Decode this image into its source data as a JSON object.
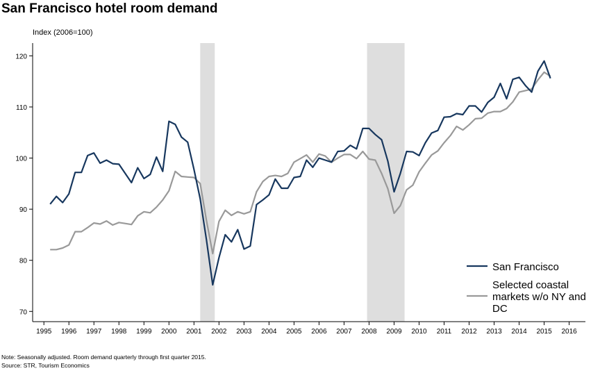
{
  "title": "San Francisco hotel room demand",
  "notes": {
    "note": "Note: Seasonally adjusted. Room demand quarterly through first quarter 2015.",
    "source": "Source: STR, Tourism Economics"
  },
  "colors": {
    "sf": "#17375e",
    "coastal": "#999999",
    "recession": "#dedede",
    "axis": "#000000"
  },
  "chart_data": {
    "type": "line",
    "title": "San Francisco hotel room demand",
    "ylabel": "Index (2006=100)",
    "xlabel": "",
    "xlim": [
      1994.55,
      2016.65
    ],
    "ylim": [
      68,
      122.5
    ],
    "x_ticks": [
      1995,
      1996,
      1997,
      1998,
      1999,
      2000,
      2001,
      2002,
      2003,
      2004,
      2005,
      2006,
      2007,
      2008,
      2009,
      2010,
      2011,
      2012,
      2013,
      2014,
      2015,
      2016
    ],
    "y_ticks": [
      70,
      80,
      90,
      100,
      110,
      120
    ],
    "grid": false,
    "legend_position": "bottom-right",
    "recession_bands": [
      [
        2001.25,
        2001.83
      ],
      [
        2007.92,
        2009.42
      ]
    ],
    "series": [
      {
        "name": "San Francisco",
        "values": [
          [
            1995.25,
            91.0
          ],
          [
            1995.5,
            92.5
          ],
          [
            1995.75,
            91.3
          ],
          [
            1996.0,
            93.0
          ],
          [
            1996.25,
            97.2
          ],
          [
            1996.5,
            97.2
          ],
          [
            1996.75,
            100.5
          ],
          [
            1997.0,
            101.0
          ],
          [
            1997.25,
            99.0
          ],
          [
            1997.5,
            99.6
          ],
          [
            1997.75,
            98.9
          ],
          [
            1998.0,
            98.8
          ],
          [
            1998.25,
            97.0
          ],
          [
            1998.5,
            95.2
          ],
          [
            1998.75,
            98.1
          ],
          [
            1999.0,
            96.0
          ],
          [
            1999.25,
            96.8
          ],
          [
            1999.5,
            100.2
          ],
          [
            1999.75,
            97.4
          ],
          [
            2000.0,
            107.2
          ],
          [
            2000.25,
            106.6
          ],
          [
            2000.5,
            104.1
          ],
          [
            2000.75,
            103.1
          ],
          [
            2001.0,
            97.8
          ],
          [
            2001.25,
            92.0
          ],
          [
            2001.5,
            84.0
          ],
          [
            2001.75,
            75.2
          ],
          [
            2002.0,
            80.5
          ],
          [
            2002.25,
            85.0
          ],
          [
            2002.5,
            83.6
          ],
          [
            2002.75,
            86.0
          ],
          [
            2003.0,
            82.2
          ],
          [
            2003.25,
            82.8
          ],
          [
            2003.5,
            90.9
          ],
          [
            2003.75,
            91.8
          ],
          [
            2004.0,
            92.8
          ],
          [
            2004.25,
            95.9
          ],
          [
            2004.5,
            94.1
          ],
          [
            2004.75,
            94.1
          ],
          [
            2005.0,
            96.2
          ],
          [
            2005.25,
            96.4
          ],
          [
            2005.5,
            99.6
          ],
          [
            2005.75,
            98.2
          ],
          [
            2006.0,
            100.0
          ],
          [
            2006.25,
            99.6
          ],
          [
            2006.5,
            99.2
          ],
          [
            2006.75,
            101.3
          ],
          [
            2007.0,
            101.4
          ],
          [
            2007.25,
            102.5
          ],
          [
            2007.5,
            101.8
          ],
          [
            2007.75,
            105.8
          ],
          [
            2008.0,
            105.8
          ],
          [
            2008.25,
            104.6
          ],
          [
            2008.5,
            103.6
          ],
          [
            2008.75,
            99.4
          ],
          [
            2009.0,
            93.4
          ],
          [
            2009.25,
            97.0
          ],
          [
            2009.5,
            101.3
          ],
          [
            2009.75,
            101.2
          ],
          [
            2010.0,
            100.5
          ],
          [
            2010.25,
            103.0
          ],
          [
            2010.5,
            104.9
          ],
          [
            2010.75,
            105.4
          ],
          [
            2011.0,
            108.0
          ],
          [
            2011.25,
            108.1
          ],
          [
            2011.5,
            108.7
          ],
          [
            2011.75,
            108.5
          ],
          [
            2012.0,
            110.2
          ],
          [
            2012.25,
            110.2
          ],
          [
            2012.5,
            109.0
          ],
          [
            2012.75,
            110.9
          ],
          [
            2013.0,
            111.9
          ],
          [
            2013.25,
            114.6
          ],
          [
            2013.5,
            111.6
          ],
          [
            2013.75,
            115.4
          ],
          [
            2014.0,
            115.8
          ],
          [
            2014.25,
            114.2
          ],
          [
            2014.5,
            112.9
          ],
          [
            2014.75,
            117.0
          ],
          [
            2015.0,
            119.0
          ],
          [
            2015.25,
            115.6
          ]
        ]
      },
      {
        "name": "Selected coastal markets w/o NY and DC",
        "values": [
          [
            1995.25,
            82.1
          ],
          [
            1995.5,
            82.1
          ],
          [
            1995.75,
            82.4
          ],
          [
            1996.0,
            83.0
          ],
          [
            1996.25,
            85.6
          ],
          [
            1996.5,
            85.6
          ],
          [
            1996.75,
            86.4
          ],
          [
            1997.0,
            87.3
          ],
          [
            1997.25,
            87.1
          ],
          [
            1997.5,
            87.7
          ],
          [
            1997.75,
            86.9
          ],
          [
            1998.0,
            87.4
          ],
          [
            1998.25,
            87.2
          ],
          [
            1998.5,
            87.0
          ],
          [
            1998.75,
            88.7
          ],
          [
            1999.0,
            89.5
          ],
          [
            1999.25,
            89.3
          ],
          [
            1999.5,
            90.4
          ],
          [
            1999.75,
            91.8
          ],
          [
            2000.0,
            93.6
          ],
          [
            2000.25,
            97.4
          ],
          [
            2000.5,
            96.4
          ],
          [
            2000.75,
            96.3
          ],
          [
            2001.0,
            96.2
          ],
          [
            2001.25,
            95.0
          ],
          [
            2001.5,
            87.8
          ],
          [
            2001.75,
            81.3
          ],
          [
            2002.0,
            87.6
          ],
          [
            2002.25,
            89.8
          ],
          [
            2002.5,
            88.8
          ],
          [
            2002.75,
            89.5
          ],
          [
            2003.0,
            89.1
          ],
          [
            2003.25,
            89.5
          ],
          [
            2003.5,
            93.4
          ],
          [
            2003.75,
            95.4
          ],
          [
            2004.0,
            96.4
          ],
          [
            2004.25,
            96.6
          ],
          [
            2004.5,
            96.4
          ],
          [
            2004.75,
            97.0
          ],
          [
            2005.0,
            99.2
          ],
          [
            2005.25,
            99.9
          ],
          [
            2005.5,
            100.6
          ],
          [
            2005.75,
            99.2
          ],
          [
            2006.0,
            100.8
          ],
          [
            2006.25,
            100.4
          ],
          [
            2006.5,
            99.2
          ],
          [
            2006.75,
            100.0
          ],
          [
            2007.0,
            100.7
          ],
          [
            2007.25,
            100.7
          ],
          [
            2007.5,
            99.9
          ],
          [
            2007.75,
            101.3
          ],
          [
            2008.0,
            99.8
          ],
          [
            2008.25,
            99.6
          ],
          [
            2008.5,
            97.0
          ],
          [
            2008.75,
            94.0
          ],
          [
            2009.0,
            89.2
          ],
          [
            2009.25,
            90.7
          ],
          [
            2009.5,
            93.8
          ],
          [
            2009.75,
            94.7
          ],
          [
            2010.0,
            97.3
          ],
          [
            2010.25,
            99.0
          ],
          [
            2010.5,
            100.6
          ],
          [
            2010.75,
            101.4
          ],
          [
            2011.0,
            103.0
          ],
          [
            2011.25,
            104.4
          ],
          [
            2011.5,
            106.2
          ],
          [
            2011.75,
            105.5
          ],
          [
            2012.0,
            106.5
          ],
          [
            2012.25,
            107.7
          ],
          [
            2012.5,
            107.8
          ],
          [
            2012.75,
            108.8
          ],
          [
            2013.0,
            109.1
          ],
          [
            2013.25,
            109.1
          ],
          [
            2013.5,
            109.7
          ],
          [
            2013.75,
            111.0
          ],
          [
            2014.0,
            112.9
          ],
          [
            2014.25,
            113.2
          ],
          [
            2014.5,
            113.5
          ],
          [
            2014.75,
            115.3
          ],
          [
            2015.0,
            116.8
          ],
          [
            2015.25,
            116.0
          ]
        ]
      }
    ],
    "legend": [
      "San Francisco",
      "Selected coastal markets w/o NY and DC"
    ]
  }
}
